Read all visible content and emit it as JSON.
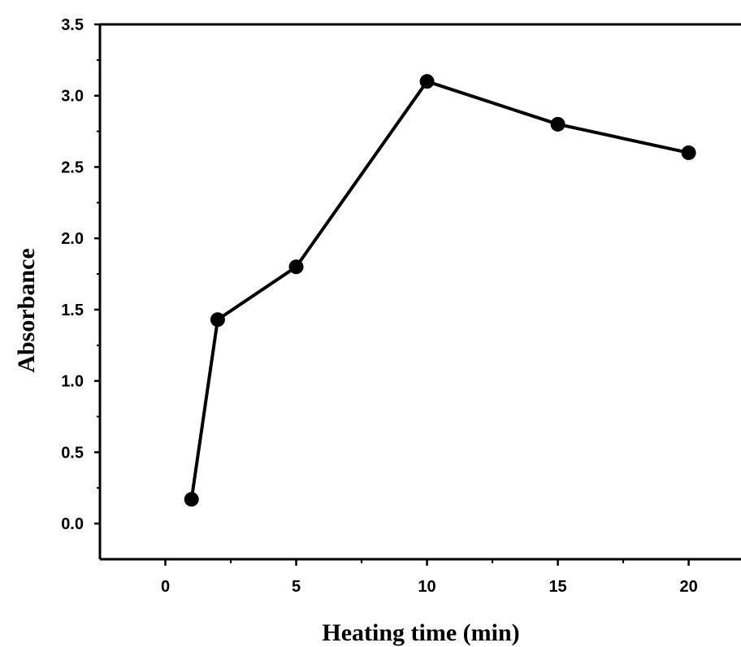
{
  "chart_data": {
    "type": "line",
    "title": "",
    "xlabel": "Heating time (min)",
    "ylabel": "Absorbance",
    "xlim": [
      -2.5,
      22
    ],
    "ylim": [
      -0.25,
      3.5
    ],
    "xticks": [
      0,
      5,
      10,
      15,
      20
    ],
    "xtick_labels": [
      "0",
      "5",
      "10",
      "15",
      "20"
    ],
    "yticks": [
      0.0,
      0.5,
      1.0,
      1.5,
      2.0,
      2.5,
      3.0,
      3.5
    ],
    "ytick_labels": [
      "0.0",
      "0.5",
      "1.0",
      "1.5",
      "2.0",
      "2.5",
      "3.0",
      "3.5"
    ],
    "grid": false,
    "marker": "filled-circle",
    "line_color": "#000000",
    "series": [
      {
        "x": [
          1,
          2,
          5,
          10,
          15,
          20
        ],
        "y": [
          0.17,
          1.43,
          1.8,
          3.1,
          2.8,
          2.6
        ]
      }
    ]
  }
}
